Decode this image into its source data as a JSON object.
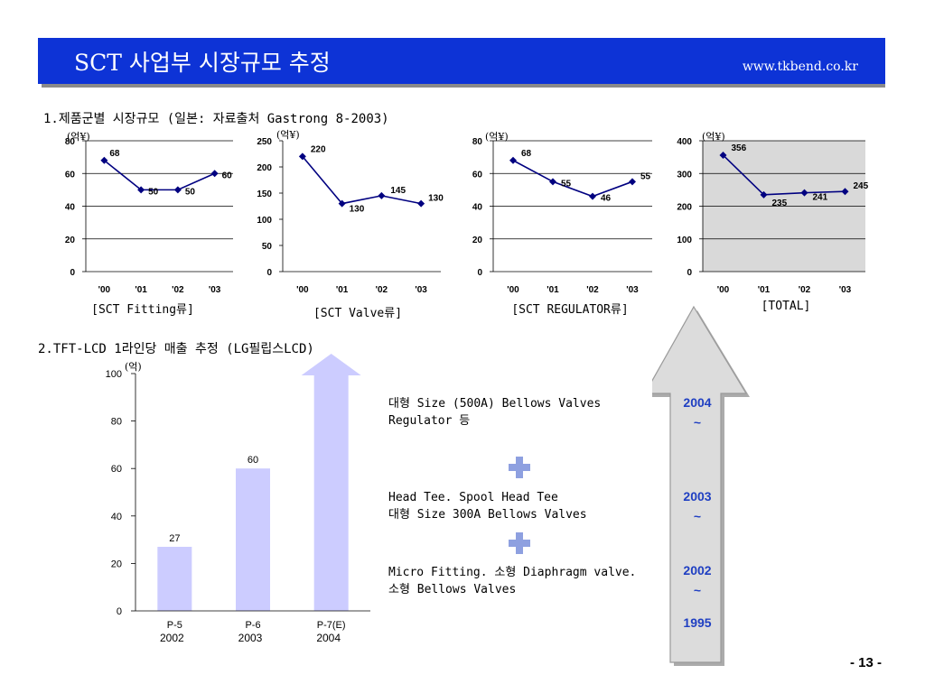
{
  "header": {
    "title": "SCT 사업부 시장규모 추정",
    "url": "www.tkbend.co.kr"
  },
  "section1": {
    "title": "1.제품군별 시장규모 (일본: 자료출처 Gastrong 8-2003)",
    "unit_label": "(억¥)"
  },
  "section2": {
    "title": "2.TFT-LCD 1라인당 매출 추정 (LG필립스LCD)",
    "unit_label": "(억)"
  },
  "products": [
    {
      "text": "대형 Size (500A) Bellows Valves\nRegulator 등",
      "year": "2004\n~"
    },
    {
      "text": "Head Tee. Spool Head Tee\n대형 Size 300A Bellows Valves",
      "year": "2003\n~"
    },
    {
      "text": "Micro Fitting. 소형 Diaphragm valve.\n소형 Bellows Valves",
      "year": "2002\n~"
    }
  ],
  "arrow_bottom_year": "1995",
  "page_number": "- 13 -",
  "colors": {
    "header_bg": "#0d33d6",
    "line": "#000080",
    "bar_fill": "#ccccff",
    "total_plot_bg": "#d9d9d9",
    "year_text": "#1f3fc2",
    "plus": "#8ea0e0"
  },
  "chart_data": [
    {
      "type": "line",
      "caption": "[SCT Fitting류]",
      "categories": [
        "'00",
        "'01",
        "'02",
        "'03"
      ],
      "values": [
        68,
        50,
        50,
        60
      ],
      "ylim": [
        0,
        80
      ],
      "yticks": [
        0,
        20,
        40,
        60,
        80
      ],
      "grid": true
    },
    {
      "type": "line",
      "caption": "[SCT Valve류]",
      "categories": [
        "'00",
        "'01",
        "'02",
        "'03"
      ],
      "values": [
        220,
        130,
        145,
        130
      ],
      "ylim": [
        0,
        250
      ],
      "yticks": [
        0,
        50,
        100,
        150,
        200,
        250
      ],
      "grid": false
    },
    {
      "type": "line",
      "caption": "[SCT REGULATOR류]",
      "categories": [
        "'00",
        "'01",
        "'02",
        "'03"
      ],
      "values": [
        68,
        55,
        46,
        55
      ],
      "ylim": [
        0,
        80
      ],
      "yticks": [
        0,
        20,
        40,
        60,
        80
      ],
      "grid": true
    },
    {
      "type": "line",
      "caption": "[TOTAL]",
      "categories": [
        "'00",
        "'01",
        "'02",
        "'03"
      ],
      "values": [
        356,
        235,
        241,
        245
      ],
      "ylim": [
        0,
        400
      ],
      "yticks": [
        0,
        100,
        200,
        300,
        400
      ],
      "grid": true,
      "plot_background": "gray"
    },
    {
      "type": "bar",
      "categories": [
        "P-5",
        "P-6",
        "P-7(E)"
      ],
      "category_years": [
        "2002",
        "2003",
        "2004"
      ],
      "values": [
        27,
        60,
        100
      ],
      "data_labels": [
        "27",
        "60",
        ""
      ],
      "ylim": [
        0,
        100
      ],
      "yticks": [
        0,
        20,
        40,
        60,
        80,
        100
      ],
      "grid": false
    }
  ]
}
